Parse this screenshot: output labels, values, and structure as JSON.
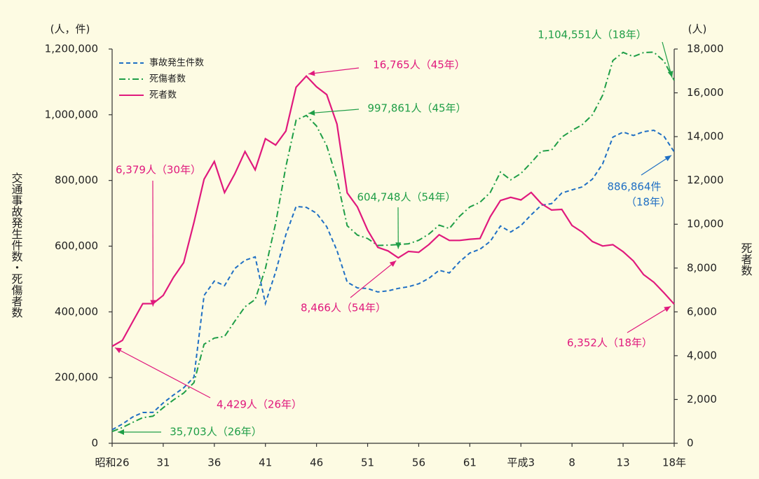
{
  "chart_data": {
    "type": "line",
    "y_label_left": "(人，件)",
    "y_label_right": "(人)",
    "y_axis_title_left": "交通事故発生件数・死傷者数",
    "y_axis_title_right": "死者数",
    "categories": [
      "昭和26",
      null,
      null,
      null,
      null,
      "31",
      null,
      null,
      null,
      null,
      "36",
      null,
      null,
      null,
      null,
      "41",
      null,
      null,
      null,
      null,
      "46",
      null,
      null,
      null,
      null,
      "51",
      null,
      null,
      null,
      null,
      "56",
      null,
      null,
      null,
      null,
      "61",
      null,
      null,
      null,
      null,
      "平成3",
      null,
      null,
      null,
      null,
      "8",
      null,
      null,
      null,
      null,
      "13",
      null,
      null,
      null,
      null,
      "18年"
    ],
    "ylim": [
      0,
      1200000
    ],
    "yticks": [
      0,
      {
        "value": 200000,
        "label": "200,000"
      },
      {
        "value": 400000,
        "label": "400,000"
      },
      {
        "value": 600000,
        "label": "600,000"
      },
      {
        "value": 800000,
        "label": "800,000"
      },
      {
        "value": 1000000,
        "label": "1,000,000"
      },
      {
        "value": 1200000,
        "label": "1,200,000"
      }
    ],
    "y2lim": [
      0,
      18000
    ],
    "y2ticks": [
      0,
      {
        "value": 2000,
        "label": "2,000"
      },
      {
        "value": 4000,
        "label": "4,000"
      },
      {
        "value": 6000,
        "label": "6,000"
      },
      {
        "value": 8000,
        "label": "8,000"
      },
      {
        "value": 10000,
        "label": "10,000"
      },
      {
        "value": 12000,
        "label": "12,000"
      },
      {
        "value": 14000,
        "label": "14,000"
      },
      {
        "value": 16000,
        "label": "16,000"
      },
      {
        "value": 18000,
        "label": "18,000"
      }
    ],
    "legend": "top-left",
    "series": [
      {
        "name": "事故発生件数",
        "color": "#1f6fc4",
        "style": "dashed",
        "values": [
          41423,
          58487,
          80019,
          93869,
          93981,
          122691,
          146833,
          168799,
          201292,
          449917,
          493693,
          479825,
          531966,
          557183,
          567286,
          425944,
          521481,
          635056,
          720880,
          718080,
          700290,
          659283,
          586713,
          490452,
          472938,
          471041,
          460649,
          464037,
          471573,
          476677,
          485578,
          502261,
          526362,
          518642,
          552788,
          579190,
          590723,
          614481,
          661363,
          643097,
          662392,
          695345,
          724675,
          729461,
          761794,
          771085,
          780401,
          803882,
          850371,
          931934,
          947253,
          936950,
          948281,
          952709,
          934339,
          886864
        ]
      },
      {
        "name": "死傷者数",
        "color": "#1f9e47",
        "style": "dashdot",
        "values": [
          35703,
          48036,
          63496,
          77930,
          82448,
          108339,
          131884,
          153034,
          184355,
          301546,
          320097,
          325217,
          371567,
          415634,
          437681,
          531727,
          669521,
          842045,
          983435,
          997861,
          965744,
          905523,
          803878,
          662143,
          633594,
          623306,
          602156,
          603072,
          604748,
          607346,
          617871,
          636795,
          664044,
          653693,
          690923,
          719356,
          733407,
          763227,
          825597,
          801822,
          821294,
          854025,
          889045,
          892251,
          932099,
          952033,
          969843,
          999722,
          1059400,
          1164763,
          1189670,
          1176898,
          1189133,
          1190463,
          1163115,
          1104551
        ]
      },
      {
        "name": "死者数",
        "color": "#e0197d",
        "style": "solid",
        "axis": "y2",
        "values": [
          4429,
          4696,
          5544,
          6374,
          6379,
          6751,
          7575,
          8248,
          10079,
          12055,
          12865,
          11445,
          12301,
          13318,
          12484,
          13904,
          13618,
          14256,
          16257,
          16765,
          16278,
          15918,
          14574,
          11432,
          10792,
          9734,
          8945,
          8783,
          8466,
          8760,
          8719,
          9073,
          9520,
          9262,
          9261,
          9317,
          9347,
          10344,
          11086,
          11227,
          11109,
          11452,
          10942,
          10649,
          10679,
          9942,
          9640,
          9211,
          9006,
          9066,
          8747,
          8326,
          7702,
          7358,
          6871,
          6352
        ]
      }
    ],
    "annotations": [
      {
        "text": "16,765人（45年）",
        "color": "#e0197d"
      },
      {
        "text": "997,861人（45年）",
        "color": "#1f9e47"
      },
      {
        "text": "6,379人（30年）",
        "color": "#e0197d"
      },
      {
        "text": "604,748人（54年）",
        "color": "#1f9e47"
      },
      {
        "text": "8,466人（54年）",
        "color": "#e0197d"
      },
      {
        "text": "1,104,551人（18年）",
        "color": "#1f9e47"
      },
      {
        "text": "886,864件",
        "color": "#1f6fc4"
      },
      {
        "text": "（18年）",
        "color": "#1f6fc4"
      },
      {
        "text": "6,352人（18年）",
        "color": "#e0197d"
      },
      {
        "text": "4,429人（26年）",
        "color": "#e0197d"
      },
      {
        "text": "35,703人（26年）",
        "color": "#1f9e47"
      }
    ]
  }
}
